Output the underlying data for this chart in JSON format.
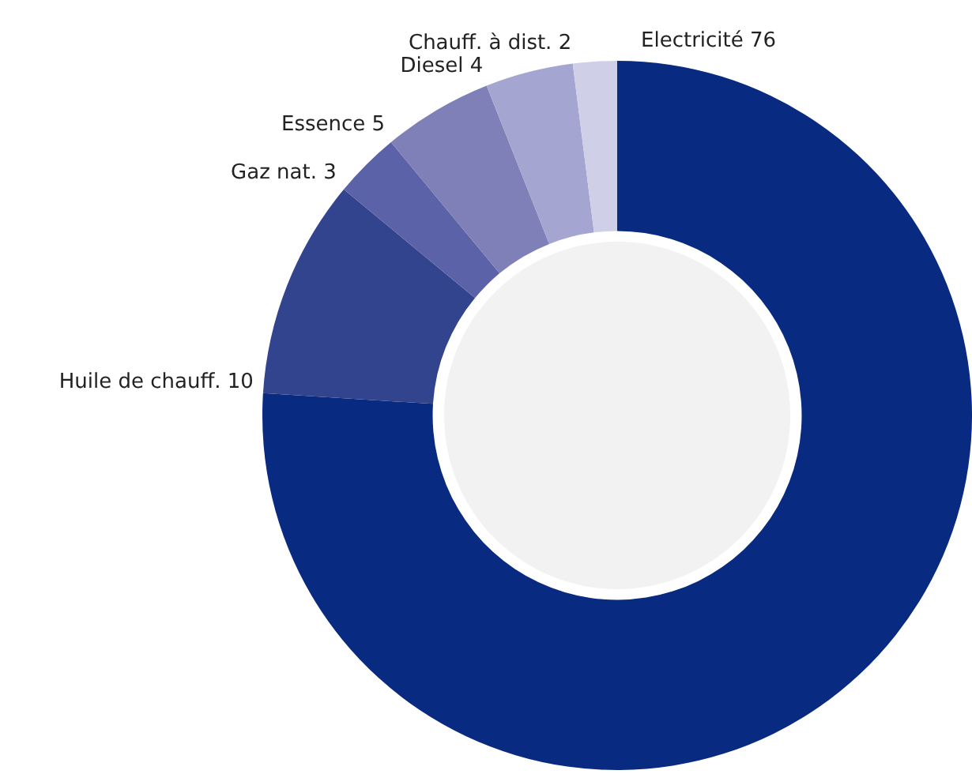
{
  "chart_data": {
    "type": "donut",
    "categories": [
      "Electricité 76",
      "Huile de chauff. 10",
      "Gaz nat. 3",
      "Essence 5",
      "Diesel 4",
      "Chauff. à dist. 2"
    ],
    "values": [
      76,
      10,
      3,
      5,
      4,
      2
    ],
    "colors": [
      "#082a80",
      "#33448f",
      "#5b62a8",
      "#7f80b7",
      "#a5a5d2",
      "#cfcfe8"
    ],
    "legend": false
  }
}
